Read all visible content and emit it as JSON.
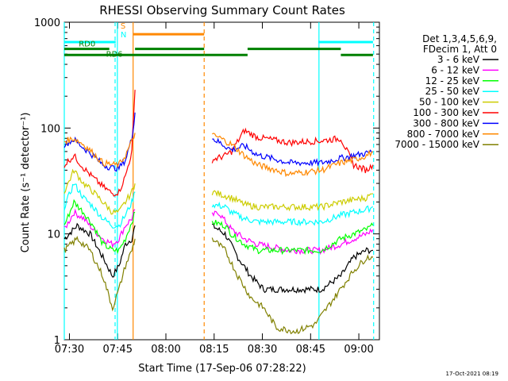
{
  "chart_data": {
    "type": "line",
    "title": "RHESSI Observing Summary Count Rates",
    "xlabel": "Start Time (17-Sep-06 07:28:22)",
    "ylabel": "Count Rate (s⁻¹ detector⁻¹)",
    "y_scale": "log",
    "ylim": [
      1,
      1000
    ],
    "xlim_minutes": [
      0,
      98
    ],
    "x_ticks": [
      {
        "label": "07:30",
        "minute": 1.6
      },
      {
        "label": "07:45",
        "minute": 16.6
      },
      {
        "label": "08:00",
        "minute": 31.6
      },
      {
        "label": "08:15",
        "minute": 46.6
      },
      {
        "label": "08:30",
        "minute": 61.6
      },
      {
        "label": "08:45",
        "minute": 76.6
      },
      {
        "label": "09:00",
        "minute": 91.6
      }
    ],
    "y_ticks": [
      "1",
      "10",
      "100",
      "1000"
    ],
    "legend_header": [
      "Det 1,3,4,5,6,9,",
      "FDecim 1, Att 0"
    ],
    "legend_position": "right",
    "series": [
      {
        "name": "3 - 6 keV",
        "color": "#000000",
        "values": [
          [
            0,
            9
          ],
          [
            4,
            12
          ],
          [
            8,
            10
          ],
          [
            12,
            6
          ],
          [
            15,
            4
          ],
          [
            17,
            5
          ],
          [
            19,
            8
          ],
          [
            21,
            9
          ],
          [
            22,
            12
          ],
          [
            46,
            12
          ],
          [
            50,
            10
          ],
          [
            54,
            6
          ],
          [
            58,
            4
          ],
          [
            62,
            3
          ],
          [
            70,
            3
          ],
          [
            80,
            3
          ],
          [
            86,
            4
          ],
          [
            90,
            6
          ],
          [
            94,
            7
          ],
          [
            96,
            7
          ]
        ]
      },
      {
        "name": "6 - 12 keV",
        "color": "#ff00ff",
        "values": [
          [
            0,
            11
          ],
          [
            3,
            16
          ],
          [
            6,
            14
          ],
          [
            9,
            11
          ],
          [
            12,
            9
          ],
          [
            15,
            8
          ],
          [
            17,
            9
          ],
          [
            19,
            12
          ],
          [
            21,
            14
          ],
          [
            22,
            17
          ],
          [
            46,
            15
          ],
          [
            48,
            16
          ],
          [
            52,
            11
          ],
          [
            56,
            9
          ],
          [
            60,
            8
          ],
          [
            70,
            7
          ],
          [
            80,
            7
          ],
          [
            86,
            8
          ],
          [
            90,
            9
          ],
          [
            94,
            10
          ],
          [
            96,
            11
          ]
        ]
      },
      {
        "name": "12 - 25 keV",
        "color": "#00ff00",
        "values": [
          [
            0,
            12
          ],
          [
            3,
            20
          ],
          [
            6,
            16
          ],
          [
            9,
            12
          ],
          [
            12,
            8
          ],
          [
            15,
            7
          ],
          [
            17,
            7
          ],
          [
            19,
            9
          ],
          [
            21,
            13
          ],
          [
            22,
            16
          ],
          [
            46,
            13
          ],
          [
            50,
            12
          ],
          [
            52,
            10
          ],
          [
            56,
            8
          ],
          [
            60,
            7
          ],
          [
            70,
            7
          ],
          [
            80,
            7
          ],
          [
            86,
            9
          ],
          [
            90,
            10
          ],
          [
            94,
            11
          ],
          [
            96,
            12
          ]
        ]
      },
      {
        "name": "25 - 50 keV",
        "color": "#00ffff",
        "values": [
          [
            0,
            18
          ],
          [
            3,
            30
          ],
          [
            6,
            22
          ],
          [
            9,
            18
          ],
          [
            12,
            14
          ],
          [
            15,
            12
          ],
          [
            17,
            12
          ],
          [
            19,
            15
          ],
          [
            21,
            20
          ],
          [
            22,
            25
          ],
          [
            46,
            19
          ],
          [
            50,
            18
          ],
          [
            52,
            16
          ],
          [
            56,
            14
          ],
          [
            60,
            13
          ],
          [
            70,
            13
          ],
          [
            80,
            13
          ],
          [
            86,
            15
          ],
          [
            90,
            16
          ],
          [
            94,
            17
          ],
          [
            96,
            18
          ]
        ]
      },
      {
        "name": "50 - 100 keV",
        "color": "#cccc00",
        "values": [
          [
            0,
            25
          ],
          [
            3,
            40
          ],
          [
            6,
            30
          ],
          [
            9,
            25
          ],
          [
            12,
            20
          ],
          [
            15,
            16
          ],
          [
            17,
            16
          ],
          [
            19,
            20
          ],
          [
            21,
            25
          ],
          [
            22,
            30
          ],
          [
            46,
            25
          ],
          [
            50,
            23
          ],
          [
            52,
            22
          ],
          [
            56,
            19
          ],
          [
            60,
            18
          ],
          [
            70,
            18
          ],
          [
            80,
            18
          ],
          [
            86,
            20
          ],
          [
            90,
            21
          ],
          [
            94,
            22
          ],
          [
            96,
            24
          ]
        ]
      },
      {
        "name": "100 - 300 keV",
        "color": "#ff0000",
        "values": [
          [
            0,
            45
          ],
          [
            3,
            55
          ],
          [
            6,
            42
          ],
          [
            9,
            34
          ],
          [
            12,
            28
          ],
          [
            15,
            24
          ],
          [
            17,
            25
          ],
          [
            19,
            35
          ],
          [
            21,
            60
          ],
          [
            22,
            230
          ],
          [
            46,
            50
          ],
          [
            50,
            55
          ],
          [
            52,
            60
          ],
          [
            56,
            95
          ],
          [
            60,
            82
          ],
          [
            70,
            73
          ],
          [
            80,
            76
          ],
          [
            86,
            80
          ],
          [
            90,
            45
          ],
          [
            94,
            40
          ],
          [
            96,
            45
          ]
        ]
      },
      {
        "name": "300 - 800 keV",
        "color": "#0000ff",
        "values": [
          [
            0,
            70
          ],
          [
            3,
            78
          ],
          [
            6,
            65
          ],
          [
            9,
            55
          ],
          [
            12,
            45
          ],
          [
            15,
            42
          ],
          [
            17,
            42
          ],
          [
            19,
            50
          ],
          [
            21,
            80
          ],
          [
            22,
            140
          ],
          [
            46,
            80
          ],
          [
            50,
            68
          ],
          [
            52,
            62
          ],
          [
            56,
            68
          ],
          [
            60,
            56
          ],
          [
            70,
            47
          ],
          [
            80,
            47
          ],
          [
            86,
            52
          ],
          [
            90,
            55
          ],
          [
            94,
            58
          ],
          [
            96,
            60
          ]
        ]
      },
      {
        "name": "800 - 7000 keV",
        "color": "#ff8800",
        "values": [
          [
            0,
            75
          ],
          [
            3,
            80
          ],
          [
            6,
            70
          ],
          [
            9,
            58
          ],
          [
            12,
            47
          ],
          [
            15,
            45
          ],
          [
            17,
            45
          ],
          [
            19,
            55
          ],
          [
            21,
            75
          ],
          [
            22,
            90
          ],
          [
            46,
            85
          ],
          [
            48,
            82
          ],
          [
            52,
            70
          ],
          [
            56,
            55
          ],
          [
            60,
            45
          ],
          [
            70,
            37
          ],
          [
            80,
            40
          ],
          [
            86,
            47
          ],
          [
            90,
            50
          ],
          [
            94,
            55
          ],
          [
            96,
            60
          ]
        ]
      },
      {
        "name": "7000 - 15000 keV",
        "color": "#808000",
        "values": [
          [
            0,
            7
          ],
          [
            4,
            9
          ],
          [
            8,
            7
          ],
          [
            12,
            4
          ],
          [
            15,
            2
          ],
          [
            17,
            3
          ],
          [
            19,
            5
          ],
          [
            21,
            7
          ],
          [
            22,
            9
          ],
          [
            46,
            9
          ],
          [
            50,
            7
          ],
          [
            54,
            4
          ],
          [
            58,
            2.5
          ],
          [
            62,
            2
          ],
          [
            66,
            1.3
          ],
          [
            72,
            1.2
          ],
          [
            78,
            1.4
          ],
          [
            84,
            2.5
          ],
          [
            90,
            4.5
          ],
          [
            94,
            6
          ],
          [
            96,
            6
          ]
        ]
      }
    ],
    "segments": [
      {
        "label": "S",
        "color": "#ff8800",
        "level": 770,
        "x_ranges": [
          [
            21.5,
            43.5
          ]
        ]
      },
      {
        "label": "N",
        "color": "#00ffff",
        "level": 650,
        "x_ranges": [
          [
            0,
            16
          ],
          [
            79,
            96
          ]
        ]
      },
      {
        "label": "RD0",
        "color": "#008000",
        "level": 560,
        "x_ranges": [
          [
            0,
            14
          ],
          [
            22,
            43.5
          ],
          [
            57,
            86
          ]
        ]
      },
      {
        "label": "RD6",
        "color": "#008000",
        "level": 490,
        "x_ranges": [
          [
            0,
            43.5
          ],
          [
            43.5,
            57
          ],
          [
            86,
            96
          ]
        ]
      }
    ],
    "vlines": [
      {
        "minute": 0,
        "color": "#00ffff",
        "style": "solid"
      },
      {
        "minute": 15.8,
        "color": "#00ffff",
        "style": "dashed"
      },
      {
        "minute": 16.5,
        "color": "#00ffff",
        "style": "solid"
      },
      {
        "minute": 21.4,
        "color": "#ff8800",
        "style": "solid"
      },
      {
        "minute": 43.5,
        "color": "#ff8800",
        "style": "dashed"
      },
      {
        "minute": 79.2,
        "color": "#00ffff",
        "style": "solid"
      },
      {
        "minute": 96.2,
        "color": "#00ffff",
        "style": "dashed"
      }
    ]
  },
  "footer_timestamp": "17-Oct-2021 08:19"
}
